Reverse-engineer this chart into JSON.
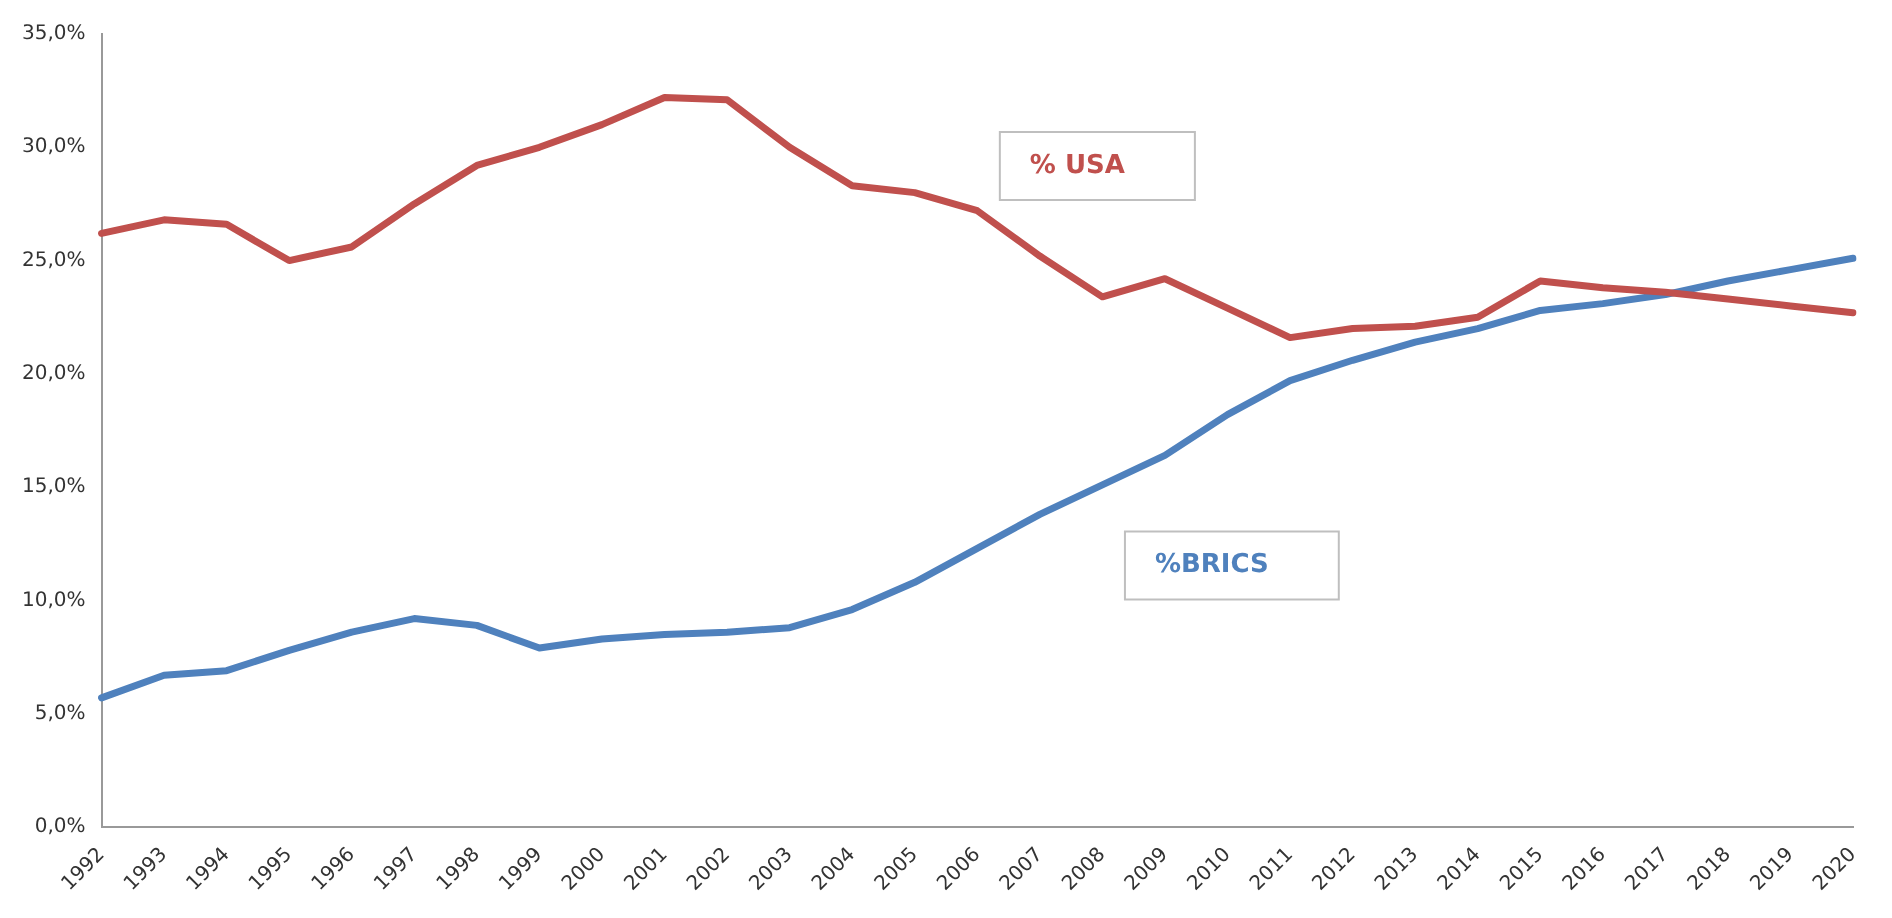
{
  "chart_data": {
    "type": "line",
    "categories": [
      "1992",
      "1993",
      "1994",
      "1995",
      "1996",
      "1997",
      "1998",
      "1999",
      "2000",
      "2001",
      "2002",
      "2003",
      "2004",
      "2005",
      "2006",
      "2007",
      "2008",
      "2009",
      "2010",
      "2011",
      "2012",
      "2013",
      "2014",
      "2015",
      "2016",
      "2017",
      "2018",
      "2019",
      "2020"
    ],
    "series": [
      {
        "name": "% USA",
        "color": "#c0504d",
        "values": [
          26.2,
          26.8,
          26.6,
          25.0,
          25.6,
          27.5,
          29.2,
          30.0,
          31.0,
          32.2,
          32.1,
          30.0,
          28.3,
          28.0,
          27.2,
          25.2,
          23.4,
          24.2,
          22.9,
          21.6,
          22.0,
          22.1,
          22.5,
          24.1,
          23.8,
          23.6,
          23.3,
          23.0,
          22.7
        ]
      },
      {
        "name": "%BRICS",
        "color": "#4f81bd",
        "values": [
          5.7,
          6.7,
          6.9,
          7.8,
          8.6,
          9.2,
          8.9,
          7.9,
          8.3,
          8.5,
          8.6,
          8.8,
          9.6,
          10.8,
          12.3,
          13.8,
          15.1,
          16.4,
          18.2,
          19.7,
          20.6,
          21.4,
          22.0,
          22.8,
          23.1,
          23.5,
          24.1,
          24.6,
          25.1
        ]
      }
    ],
    "ylim": [
      0,
      35
    ],
    "yticks": [
      {
        "value": 0,
        "label": "0,0%"
      },
      {
        "value": 5,
        "label": "5,0%"
      },
      {
        "value": 10,
        "label": "10,0%"
      },
      {
        "value": 15,
        "label": "15,0%"
      },
      {
        "value": 20,
        "label": "20,0%"
      },
      {
        "value": 25,
        "label": "25,0%"
      },
      {
        "value": 30,
        "label": "30,0%"
      },
      {
        "value": 35,
        "label": "35,0%"
      }
    ],
    "grid": false,
    "legend": false,
    "marker": "none",
    "line_style": "solid"
  }
}
